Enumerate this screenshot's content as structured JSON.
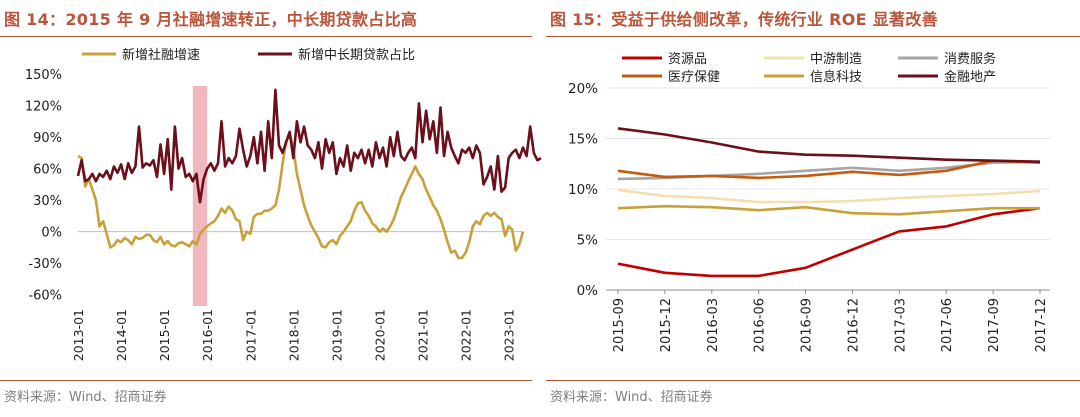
{
  "left": {
    "title": "图 14：2015 年 9 月社融增速转正，中长期贷款占比高",
    "source": "资料来源：Wind、招商证券",
    "colors": {
      "social": "#C9A13B",
      "loan": "#6B0F1A",
      "band": "#E8A0A8"
    },
    "chart_data": {
      "type": "line",
      "title": "2015 年 9 月社融增速转正，中长期贷款占比高",
      "x_ticks": [
        "2013-01",
        "2014-01",
        "2015-01",
        "2016-01",
        "2017-01",
        "2018-01",
        "2019-01",
        "2020-01",
        "2021-01",
        "2022-01",
        "2023-01"
      ],
      "y_ticks": [
        "150%",
        "120%",
        "90%",
        "60%",
        "30%",
        "0%",
        "-30%",
        "-60%"
      ],
      "ylim": [
        -0.65,
        1.5
      ],
      "x_range_months": [
        0,
        124
      ],
      "legend_position": "top",
      "highlight": {
        "from_month": 32,
        "to_month": 36
      },
      "series": [
        {
          "name": "新增社融增速",
          "key": "social",
          "values": [
            0.72,
            0.7,
            0.43,
            0.5,
            0.4,
            0.3,
            0.05,
            0.1,
            -0.02,
            -0.15,
            -0.13,
            -0.08,
            -0.1,
            -0.06,
            -0.08,
            -0.12,
            -0.05,
            -0.07,
            -0.06,
            -0.03,
            -0.03,
            -0.08,
            -0.1,
            -0.05,
            -0.12,
            -0.09,
            -0.13,
            -0.14,
            -0.11,
            -0.1,
            -0.12,
            -0.14,
            -0.09,
            -0.12,
            -0.02,
            0.02,
            0.05,
            0.08,
            0.1,
            0.15,
            0.22,
            0.18,
            0.24,
            0.2,
            0.12,
            0.1,
            -0.08,
            0.0,
            -0.02,
            0.14,
            0.17,
            0.17,
            0.2,
            0.2,
            0.22,
            0.25,
            0.4,
            0.65,
            0.86,
            0.92,
            0.8,
            0.55,
            0.4,
            0.25,
            0.15,
            0.06,
            0.0,
            -0.06,
            -0.14,
            -0.15,
            -0.1,
            -0.08,
            -0.12,
            -0.04,
            0.0,
            0.05,
            0.1,
            0.2,
            0.27,
            0.28,
            0.2,
            0.15,
            0.08,
            0.05,
            0.0,
            0.03,
            0.0,
            0.05,
            0.12,
            0.22,
            0.33,
            0.4,
            0.48,
            0.55,
            0.62,
            0.55,
            0.5,
            0.4,
            0.33,
            0.25,
            0.2,
            0.12,
            0.02,
            -0.1,
            -0.2,
            -0.18,
            -0.25,
            -0.25,
            -0.2,
            -0.1,
            0.05,
            0.1,
            0.07,
            0.15,
            0.18,
            0.15,
            0.18,
            0.14,
            0.12,
            -0.04,
            0.05,
            0.02,
            -0.18,
            -0.12,
            0.0
          ]
        },
        {
          "name": "新增中长期贷款占比",
          "key": "loan",
          "values": [
            0.53,
            0.68,
            0.48,
            0.5,
            0.55,
            0.48,
            0.55,
            0.52,
            0.58,
            0.5,
            0.62,
            0.56,
            0.64,
            0.5,
            0.65,
            0.56,
            0.62,
            1.0,
            0.61,
            0.65,
            0.63,
            0.68,
            0.52,
            0.83,
            0.55,
            0.88,
            0.4,
            1.0,
            0.6,
            0.7,
            0.52,
            0.55,
            0.48,
            0.55,
            0.28,
            0.5,
            0.6,
            0.65,
            0.58,
            0.65,
            1.05,
            0.62,
            0.7,
            0.65,
            0.72,
            0.98,
            0.78,
            0.62,
            0.72,
            0.9,
            0.65,
            0.95,
            0.58,
            1.05,
            0.7,
            1.35,
            0.82,
            0.75,
            0.85,
            0.95,
            0.7,
            1.05,
            0.85,
            1.0,
            0.82,
            0.78,
            0.7,
            0.85,
            0.6,
            0.88,
            0.75,
            0.85,
            0.55,
            0.7,
            0.62,
            0.82,
            0.58,
            0.75,
            0.7,
            0.78,
            0.65,
            0.78,
            0.62,
            0.85,
            0.7,
            0.8,
            0.62,
            0.9,
            0.72,
            0.95,
            0.72,
            0.68,
            0.75,
            0.8,
            0.7,
            1.22,
            0.85,
            1.15,
            0.88,
            1.05,
            0.75,
            1.18,
            0.72,
            0.95,
            0.8,
            0.72,
            0.65,
            0.78,
            0.75,
            0.8,
            0.7,
            0.82,
            0.75,
            0.45,
            0.52,
            0.62,
            0.4,
            0.72,
            0.38,
            0.42,
            0.7,
            0.75,
            0.78,
            0.7,
            0.8,
            0.72,
            1.0,
            0.75,
            0.68,
            0.7
          ]
        }
      ]
    }
  },
  "right": {
    "title": "图 15：受益于供给侧改革，传统行业 ROE 显著改善",
    "source": "资料来源：Wind、招商证券",
    "chart_data": {
      "type": "line",
      "title": "受益于供给侧改革，传统行业 ROE 显著改善",
      "categories": [
        "2015-09",
        "2015-12",
        "2016-03",
        "2016-06",
        "2016-09",
        "2016-12",
        "2017-03",
        "2017-06",
        "2017-09",
        "2017-12"
      ],
      "y_ticks": [
        "20%",
        "15%",
        "10%",
        "5%",
        "0%"
      ],
      "ylim": [
        0,
        0.2
      ],
      "legend_position": "top",
      "series": [
        {
          "name": "资源品",
          "color": "#C00000",
          "values": [
            0.026,
            0.017,
            0.014,
            0.014,
            0.022,
            0.04,
            0.058,
            0.063,
            0.075,
            0.081
          ]
        },
        {
          "name": "中游制造",
          "color": "#F3E0B0",
          "values": [
            0.099,
            0.093,
            0.091,
            0.087,
            0.087,
            0.088,
            0.091,
            0.093,
            0.095,
            0.098
          ]
        },
        {
          "name": "消费服务",
          "color": "#A6A6A6",
          "values": [
            0.11,
            0.111,
            0.113,
            0.115,
            0.118,
            0.121,
            0.118,
            0.121,
            0.126,
            0.127
          ]
        },
        {
          "name": "医疗保健",
          "color": "#C55A11",
          "values": [
            0.118,
            0.112,
            0.113,
            0.111,
            0.113,
            0.117,
            0.114,
            0.118,
            0.128,
            0.126
          ]
        },
        {
          "name": "信息科技",
          "color": "#C9A13B",
          "values": [
            0.081,
            0.083,
            0.082,
            0.079,
            0.082,
            0.076,
            0.075,
            0.078,
            0.081,
            0.081
          ]
        },
        {
          "name": "金融地产",
          "color": "#6B0F1A",
          "values": [
            0.16,
            0.154,
            0.146,
            0.137,
            0.134,
            0.133,
            0.131,
            0.129,
            0.128,
            0.127
          ]
        }
      ]
    }
  }
}
